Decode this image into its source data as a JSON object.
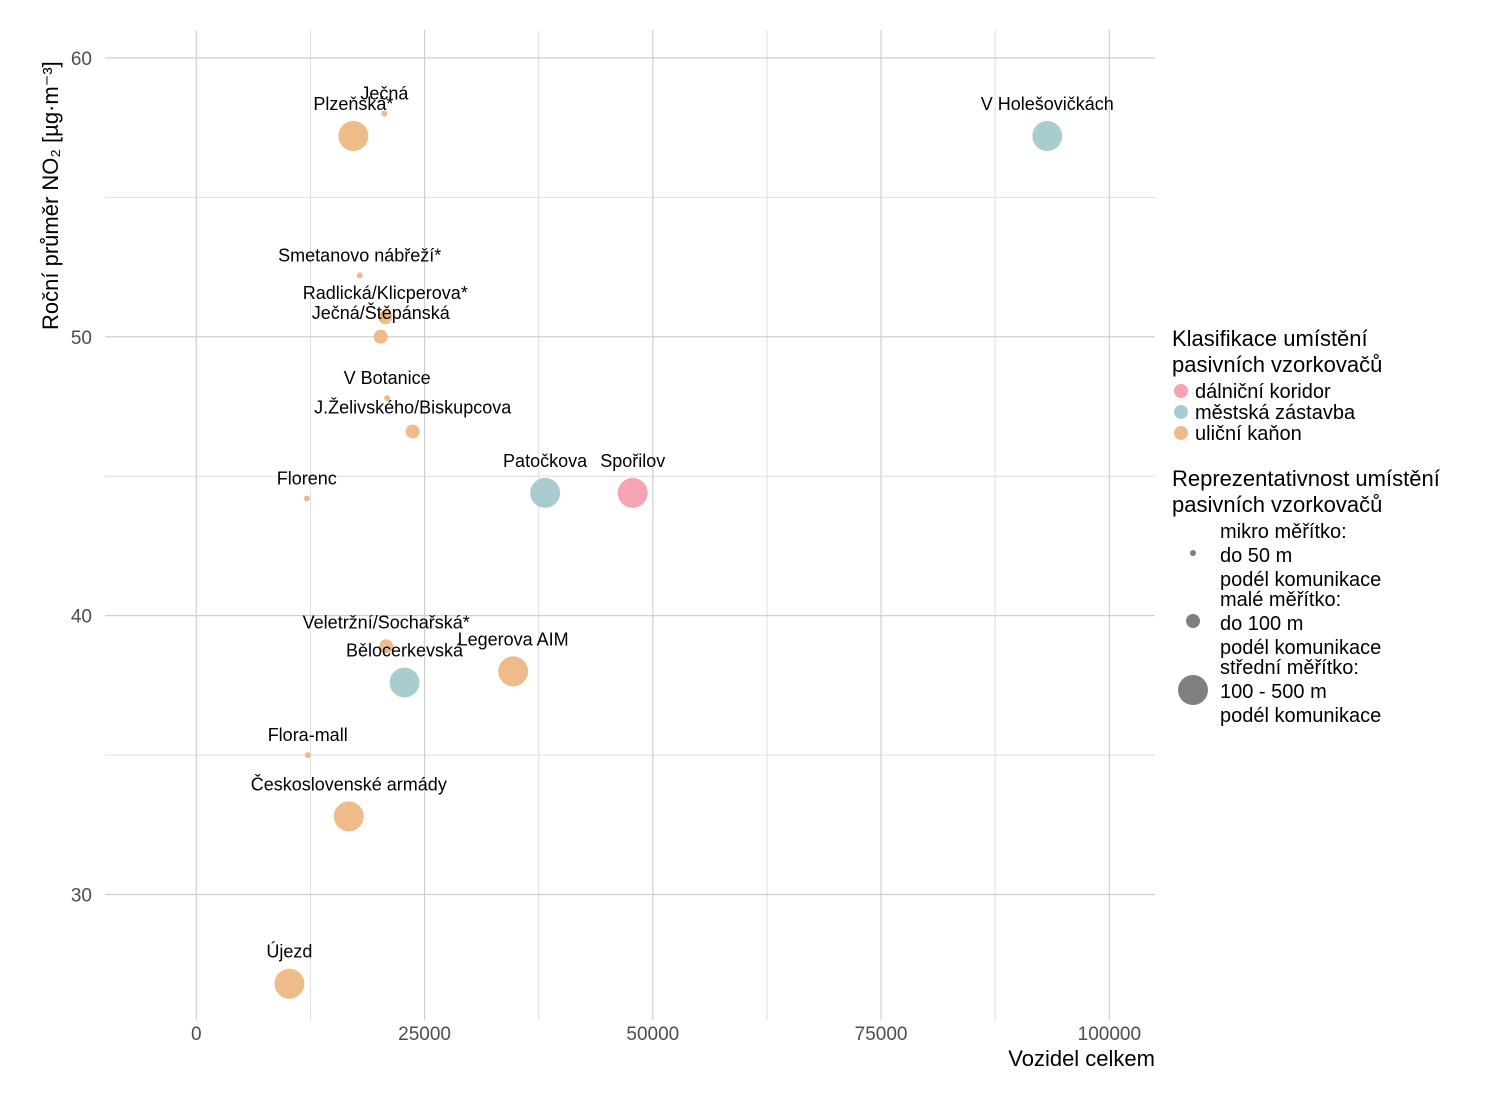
{
  "chart_data": {
    "type": "scatter",
    "xlabel": "Vozidel celkem",
    "ylabel": "Roční průměr  NO₂ [µg·m⁻³]",
    "xlim": [
      -10000,
      105000
    ],
    "ylim": [
      25.5,
      61
    ],
    "x_ticks": [
      0,
      25000,
      50000,
      75000,
      100000
    ],
    "x_tick_labels": [
      "0",
      "25000",
      "50000",
      "75000",
      "100000"
    ],
    "y_ticks": [
      30,
      40,
      50,
      60
    ],
    "y_tick_labels": [
      "30",
      "40",
      "50",
      "60"
    ],
    "grid": true,
    "colors": {
      "dálniční koridor": "#f6a3b4",
      "městská zástavba": "#a9cdcf",
      "uliční kaňon": "#eebc8a"
    },
    "points": [
      {
        "label": "Ječná",
        "x": 20600,
        "y": 58.0,
        "category": "uliční kaňon",
        "scale": "mikro"
      },
      {
        "label": "Plzeňská*",
        "x": 17200,
        "y": 57.2,
        "category": "uliční kaňon",
        "scale": "stredni"
      },
      {
        "label": "V Holešovičkách",
        "x": 93200,
        "y": 57.2,
        "category": "městská zástavba",
        "scale": "stredni"
      },
      {
        "label": "Smetanovo nábřeží*",
        "x": 17900,
        "y": 52.2,
        "category": "uliční kaňon",
        "scale": "mikro"
      },
      {
        "label": "Radlická/Klicperova*",
        "x": 20700,
        "y": 50.7,
        "category": "uliční kaňon",
        "scale": "male"
      },
      {
        "label": "Ječná/Štěpánská",
        "x": 20200,
        "y": 50.0,
        "category": "uliční kaňon",
        "scale": "male"
      },
      {
        "label": "V Botanice",
        "x": 20900,
        "y": 47.8,
        "category": "uliční kaňon",
        "scale": "mikro"
      },
      {
        "label": "J.Želivského/Biskupcova",
        "x": 23700,
        "y": 46.6,
        "category": "uliční kaňon",
        "scale": "male"
      },
      {
        "label": "Florenc",
        "x": 12100,
        "y": 44.2,
        "category": "uliční kaňon",
        "scale": "mikro"
      },
      {
        "label": "Patočkova",
        "x": 38200,
        "y": 44.4,
        "category": "městská zástavba",
        "scale": "stredni"
      },
      {
        "label": "Spořilov",
        "x": 47800,
        "y": 44.4,
        "category": "dálniční koridor",
        "scale": "stredni"
      },
      {
        "label": "Veletržní/Sochařská*",
        "x": 20800,
        "y": 38.9,
        "category": "uliční kaňon",
        "scale": "male"
      },
      {
        "label": "Legerova AIM",
        "x": 34700,
        "y": 38.0,
        "category": "uliční kaňon",
        "scale": "stredni"
      },
      {
        "label": "Bělocerkevská",
        "x": 22800,
        "y": 37.6,
        "category": "městská zástavba",
        "scale": "stredni"
      },
      {
        "label": "Flora-mall",
        "x": 12200,
        "y": 35.0,
        "category": "uliční kaňon",
        "scale": "mikro"
      },
      {
        "label": "Československé armády",
        "x": 16700,
        "y": 32.8,
        "category": "uliční kaňon",
        "scale": "stredni"
      },
      {
        "label": "Újezd",
        "x": 10200,
        "y": 26.8,
        "category": "uliční kaňon",
        "scale": "stredni"
      }
    ],
    "legend": {
      "placement": "right",
      "color_title_lines": [
        "Klasifikace umístění",
        "pasivních vzorkovačů"
      ],
      "color_entries": [
        {
          "label": "dálniční koridor",
          "color": "#f6a3b4"
        },
        {
          "label": "městská zástavba",
          "color": "#a9cdcf"
        },
        {
          "label": "uliční kaňon",
          "color": "#eebc8a"
        }
      ],
      "size_title_lines": [
        "Reprezentativnost umístění",
        "pasivních vzorkovačů"
      ],
      "size_entries": [
        {
          "scale": "mikro",
          "lines": [
            "mikro měřítko:",
            "do 50 m",
            "podél komunikace"
          ]
        },
        {
          "scale": "male",
          "lines": [
            "malé měřítko:",
            "do 100 m",
            "podél komunikace"
          ]
        },
        {
          "scale": "stredni",
          "lines": [
            "střední měřítko:",
            "100 - 500 m",
            "podél komunikace"
          ]
        }
      ],
      "size_legend_color": "#7f7f7f"
    }
  }
}
